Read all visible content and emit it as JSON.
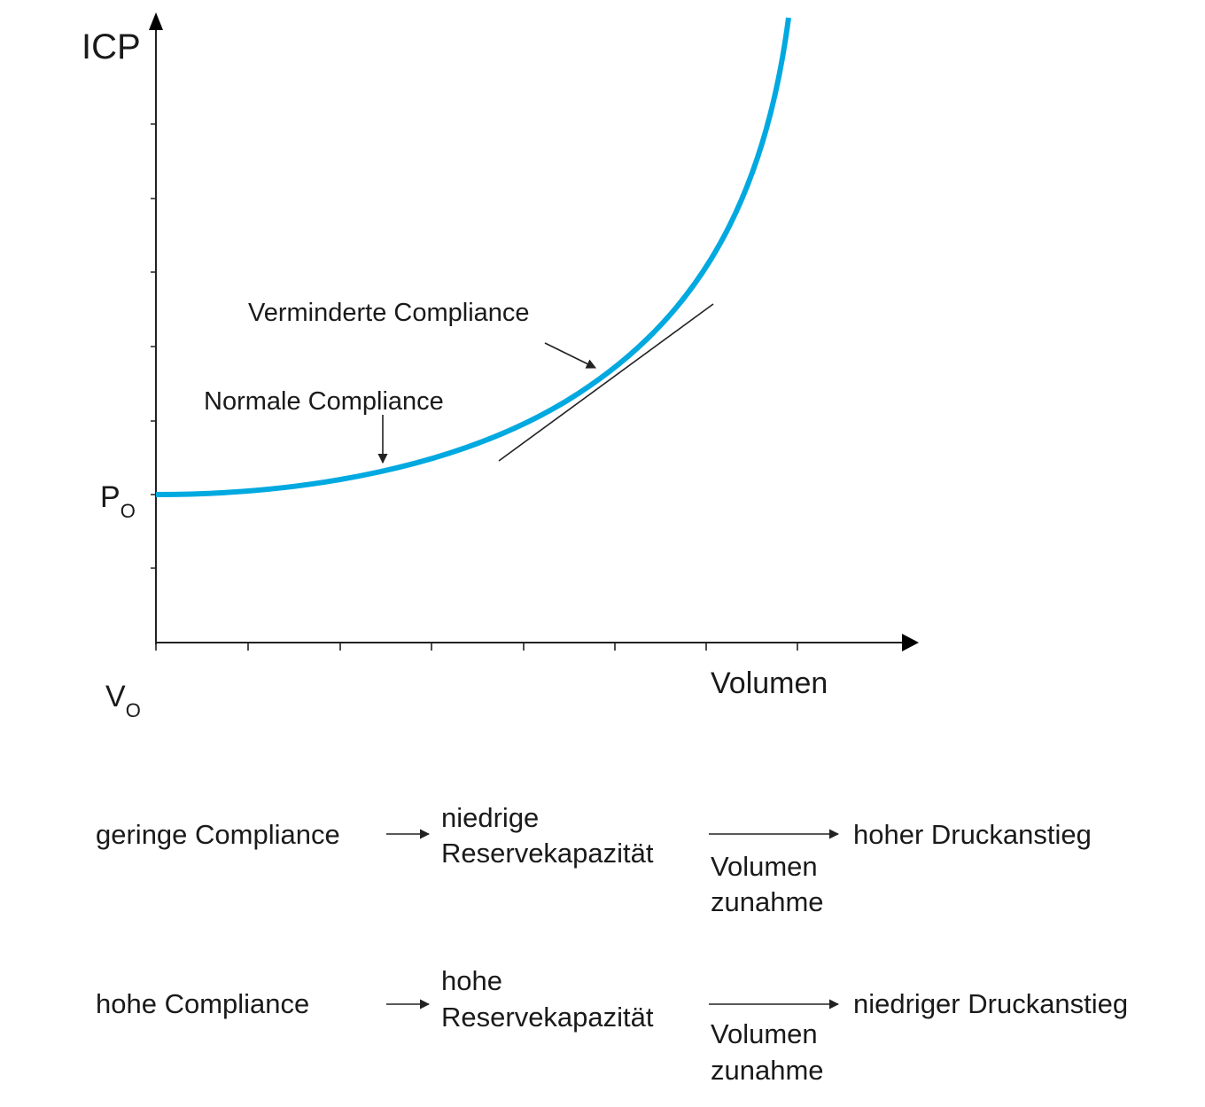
{
  "graph": {
    "y_axis_label": "ICP",
    "p0": {
      "base": "P",
      "sub": "O"
    },
    "v0": {
      "base": "V",
      "sub": "O"
    },
    "x_axis_label": "Volumen",
    "annotations": [
      "Verminderte Compliance",
      "Normale Compliance"
    ]
  },
  "rows": [
    {
      "cause": "geringe Compliance",
      "capacity": [
        "niedrige",
        "Reservekapazität"
      ],
      "trigger": [
        "Volumen",
        "zunahme"
      ],
      "effect": "hoher Druckanstieg"
    },
    {
      "cause": "hohe Compliance",
      "capacity": [
        "hohe",
        "Reservekapazität"
      ],
      "trigger": [
        "Volumen",
        "zunahme"
      ],
      "effect": "niedriger Druckanstieg"
    }
  ]
}
